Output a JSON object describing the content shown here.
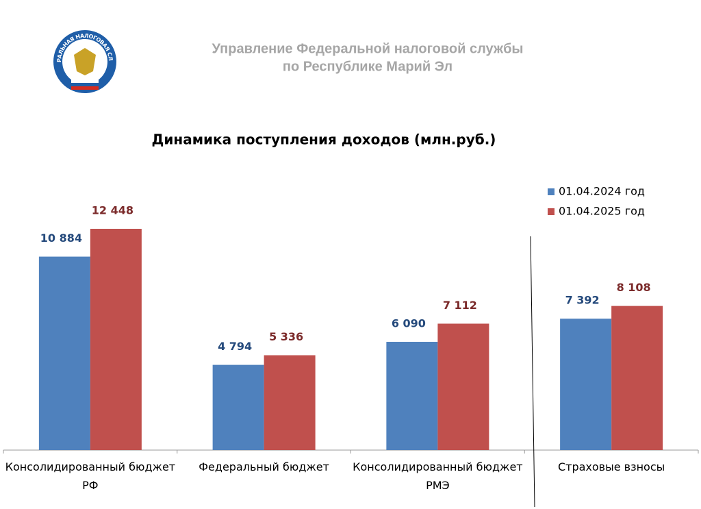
{
  "header": {
    "logo_text": "ФЕДЕРАЛЬНАЯ НАЛОГОВАЯ СЛУЖБА",
    "line1": "Управление Федеральной налоговой службы",
    "line2": "по Республике Марий Эл"
  },
  "chart_data": {
    "type": "bar",
    "title": "Динамика поступления доходов (млн.руб.)",
    "categories": [
      "Консолидированный бюджет РФ",
      "Федеральный бюджет",
      "Консолидированный бюджет РМЭ",
      "Страховые взносы"
    ],
    "series": [
      {
        "name": "01.04.2024 год",
        "color": "#4f81bd",
        "label_color": "#254a7c",
        "values": [
          10884,
          4794,
          6090,
          7392
        ],
        "value_labels": [
          "10 884",
          "4 794",
          "6 090",
          "7 392"
        ]
      },
      {
        "name": "01.04.2025 год",
        "color": "#c0504d",
        "label_color": "#7b2a2a",
        "values": [
          12448,
          5336,
          7112,
          8108
        ],
        "value_labels": [
          "12 448",
          "5 336",
          "7 112",
          "8 108"
        ]
      }
    ],
    "legend": "top-right"
  }
}
